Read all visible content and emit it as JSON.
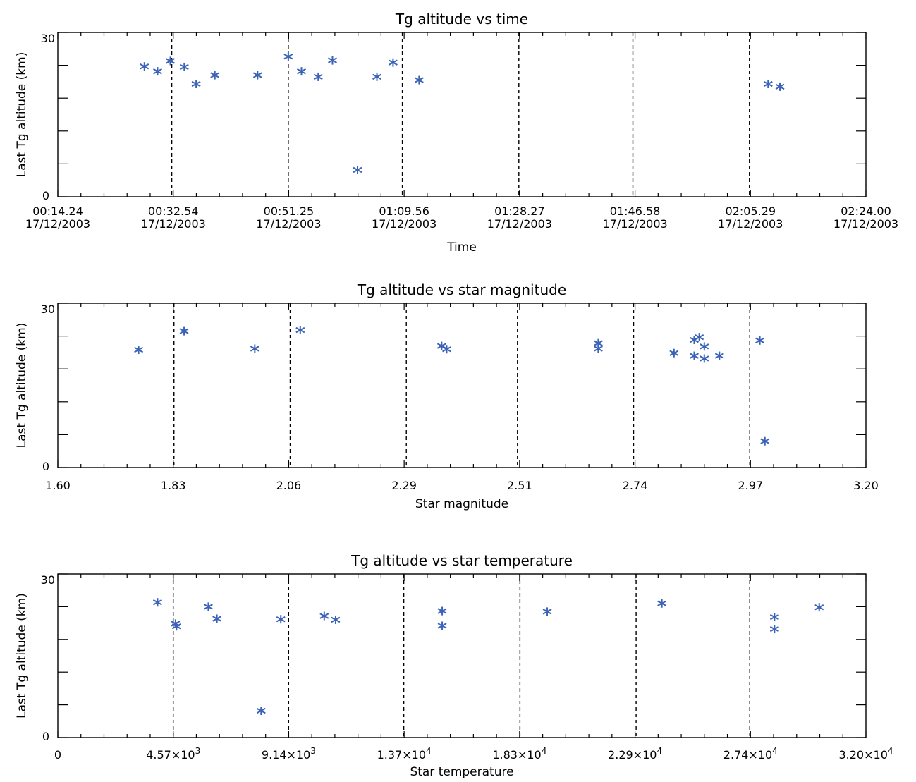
{
  "chart_data": [
    {
      "type": "scatter",
      "title": "Tg altitude vs time",
      "xlabel": "Time",
      "ylabel": "Last Tg altitude (km)",
      "xlim": [
        "00:14.24",
        "02:24.00"
      ],
      "ylim": [
        0,
        30
      ],
      "xtick_labels": [
        [
          "00:14.24",
          "17/12/2003"
        ],
        [
          "00:32.54",
          "17/12/2003"
        ],
        [
          "00:51.25",
          "17/12/2003"
        ],
        [
          "01:09.56",
          "17/12/2003"
        ],
        [
          "01:28.27",
          "17/12/2003"
        ],
        [
          "01:46.58",
          "17/12/2003"
        ],
        [
          "02:05.29",
          "17/12/2003"
        ],
        [
          "02:24.00",
          "17/12/2003"
        ]
      ],
      "ytick_labels": [
        "0",
        "30"
      ],
      "x_vertical_dashed_at": [
        "00:32.54",
        "00:51.25",
        "01:09.56",
        "01:28.27",
        "01:46.58",
        "02:05.29"
      ],
      "points": [
        {
          "x": "00:28.14",
          "y": 23.8
        },
        {
          "x": "00:30.26",
          "y": 22.9
        },
        {
          "x": "00:32.30",
          "y": 24.8
        },
        {
          "x": "00:34.54",
          "y": 23.7
        },
        {
          "x": "00:36.45",
          "y": 20.6
        },
        {
          "x": "00:39.46",
          "y": 22.2
        },
        {
          "x": "00:46.32",
          "y": 22.2
        },
        {
          "x": "00:51.25",
          "y": 25.6
        },
        {
          "x": "00:53.36",
          "y": 22.9
        },
        {
          "x": "00:56.05",
          "y": 21.9
        },
        {
          "x": "00:58.34",
          "y": 24.9
        },
        {
          "x": "01:02.36",
          "y": 4.9
        },
        {
          "x": "01:05.48",
          "y": 21.9
        },
        {
          "x": "01:08.07",
          "y": 24.5
        },
        {
          "x": "01:12.25",
          "y": 21.3
        },
        {
          "x": "02:08.29",
          "y": 20.6
        },
        {
          "x": "02:10.19",
          "y": 20.1
        }
      ]
    },
    {
      "type": "scatter",
      "title": "Tg altitude vs star magnitude",
      "xlabel": "Star magnitude",
      "ylabel": "Last Tg altitude (km)",
      "xlim": [
        1.6,
        3.2
      ],
      "ylim": [
        0,
        30
      ],
      "xtick_labels": [
        "1.60",
        "1.83",
        "2.06",
        "2.29",
        "2.51",
        "2.74",
        "2.97",
        "3.20"
      ],
      "ytick_labels": [
        "0",
        "30"
      ],
      "x_vertical_dashed_at": [
        1.83,
        2.06,
        2.29,
        2.51,
        2.74,
        2.97
      ],
      "points": [
        {
          "x": 1.76,
          "y": 21.5
        },
        {
          "x": 1.85,
          "y": 24.9
        },
        {
          "x": 1.99,
          "y": 21.7
        },
        {
          "x": 2.08,
          "y": 25.1
        },
        {
          "x": 2.36,
          "y": 22.2
        },
        {
          "x": 2.37,
          "y": 21.6
        },
        {
          "x": 2.67,
          "y": 22.7
        },
        {
          "x": 2.67,
          "y": 21.7
        },
        {
          "x": 2.82,
          "y": 20.9
        },
        {
          "x": 2.86,
          "y": 23.3
        },
        {
          "x": 2.86,
          "y": 20.4
        },
        {
          "x": 2.87,
          "y": 23.8
        },
        {
          "x": 2.88,
          "y": 22.1
        },
        {
          "x": 2.88,
          "y": 19.9
        },
        {
          "x": 2.91,
          "y": 20.4
        },
        {
          "x": 2.99,
          "y": 23.2
        },
        {
          "x": 3.0,
          "y": 4.8
        }
      ]
    },
    {
      "type": "scatter",
      "title": "Tg altitude vs star temperature",
      "xlabel": "Star temperature",
      "ylabel": "Last Tg altitude (km)",
      "xlim": [
        0,
        32000
      ],
      "ylim": [
        0,
        30
      ],
      "xtick_labels": [
        {
          "base": "0",
          "exp": ""
        },
        {
          "base": "4.57×10",
          "exp": "3"
        },
        {
          "base": "9.14×10",
          "exp": "3"
        },
        {
          "base": "1.37×10",
          "exp": "4"
        },
        {
          "base": "1.83×10",
          "exp": "4"
        },
        {
          "base": "2.29×10",
          "exp": "4"
        },
        {
          "base": "2.74×10",
          "exp": "4"
        },
        {
          "base": "3.20×10",
          "exp": "4"
        }
      ],
      "ytick_labels": [
        "0",
        "30"
      ],
      "x_vertical_dashed_at": [
        4570,
        9140,
        13700,
        18300,
        22900,
        27400
      ],
      "points": [
        {
          "x": 3950,
          "y": 24.8
        },
        {
          "x": 4660,
          "y": 20.9
        },
        {
          "x": 4700,
          "y": 20.4
        },
        {
          "x": 5960,
          "y": 24.0
        },
        {
          "x": 6300,
          "y": 21.8
        },
        {
          "x": 8050,
          "y": 4.9
        },
        {
          "x": 8830,
          "y": 21.7
        },
        {
          "x": 10550,
          "y": 22.3
        },
        {
          "x": 11000,
          "y": 21.6
        },
        {
          "x": 15220,
          "y": 23.2
        },
        {
          "x": 15220,
          "y": 20.5
        },
        {
          "x": 19380,
          "y": 23.1
        },
        {
          "x": 23920,
          "y": 24.6
        },
        {
          "x": 28380,
          "y": 22.1
        },
        {
          "x": 28380,
          "y": 19.9
        },
        {
          "x": 30150,
          "y": 23.9
        }
      ]
    }
  ]
}
